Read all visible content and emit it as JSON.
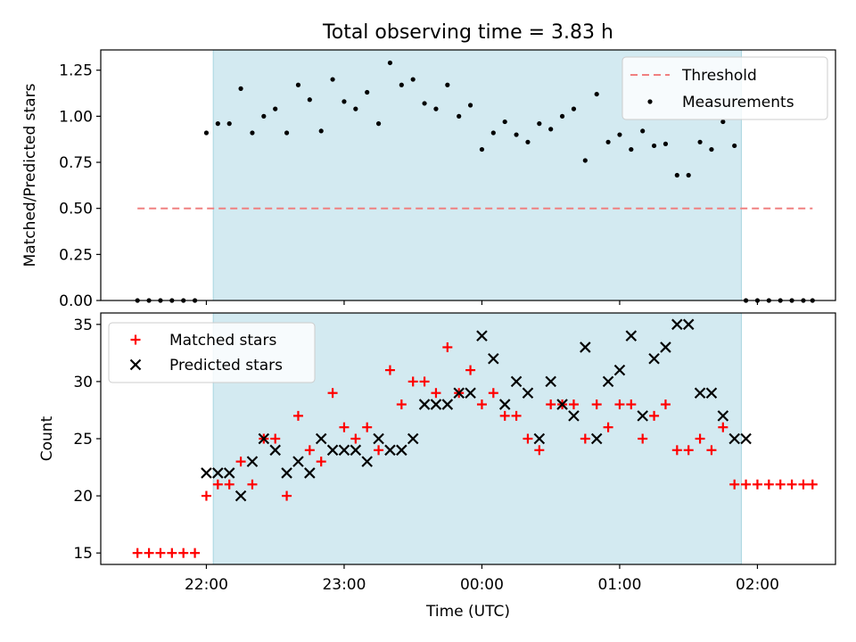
{
  "title": "Total observing time = 3.83 h",
  "xlabel": "Time (UTC)",
  "x_ticks": [
    "22:00",
    "23:00",
    "00:00",
    "01:00",
    "02:00"
  ],
  "colors": {
    "shade": "#d3eaf1",
    "threshold": "#f08080",
    "matched": "#ff0000",
    "predicted": "#000000"
  },
  "chart_data": [
    {
      "type": "scatter",
      "panel": "top",
      "ylabel": "Matched/Predicted stars",
      "ylim": [
        0,
        1.36
      ],
      "y_ticks": [
        "0.00",
        "0.25",
        "0.50",
        "0.75",
        "1.00",
        "1.25"
      ],
      "shaded_span": [
        "22:03",
        "01:53"
      ],
      "legend": [
        "Threshold",
        "Measurements"
      ],
      "legend_position": "top-right",
      "threshold": {
        "name": "Threshold",
        "value": 0.5,
        "x_range": [
          "21:30",
          "02:24"
        ]
      },
      "series": [
        {
          "name": "Measurements",
          "x": [
            "21:30",
            "21:35",
            "21:40",
            "21:45",
            "21:50",
            "21:55",
            "22:00",
            "22:05",
            "22:10",
            "22:15",
            "22:20",
            "22:25",
            "22:30",
            "22:35",
            "22:40",
            "22:45",
            "22:50",
            "22:55",
            "23:00",
            "23:05",
            "23:10",
            "23:15",
            "23:20",
            "23:25",
            "23:30",
            "23:35",
            "23:40",
            "23:45",
            "23:50",
            "23:55",
            "00:00",
            "00:05",
            "00:10",
            "00:15",
            "00:20",
            "00:25",
            "00:30",
            "00:35",
            "00:40",
            "00:45",
            "00:50",
            "00:55",
            "01:00",
            "01:05",
            "01:10",
            "01:15",
            "01:20",
            "01:25",
            "01:30",
            "01:35",
            "01:40",
            "01:45",
            "01:50",
            "01:55",
            "02:00",
            "02:05",
            "02:10",
            "02:15",
            "02:20",
            "02:24"
          ],
          "y": [
            0,
            0,
            0,
            0,
            0,
            0,
            0.91,
            0.96,
            0.96,
            1.15,
            0.91,
            1.0,
            1.04,
            0.91,
            1.17,
            1.09,
            0.92,
            1.2,
            1.08,
            1.04,
            1.13,
            0.96,
            1.29,
            1.17,
            1.2,
            1.07,
            1.04,
            1.17,
            1.0,
            1.06,
            0.82,
            0.91,
            0.97,
            0.9,
            0.86,
            0.96,
            0.93,
            1.0,
            1.04,
            0.76,
            1.12,
            0.86,
            0.9,
            0.82,
            0.92,
            0.84,
            0.85,
            0.68,
            0.68,
            0.86,
            0.82,
            0.97,
            0.84,
            0,
            0,
            0,
            0,
            0,
            0,
            0
          ]
        }
      ]
    },
    {
      "type": "scatter",
      "panel": "bottom",
      "ylabel": "Count",
      "ylim": [
        14,
        36
      ],
      "y_ticks": [
        "15",
        "20",
        "25",
        "30",
        "35"
      ],
      "shaded_span": [
        "22:03",
        "01:53"
      ],
      "legend": [
        "Matched stars",
        "Predicted stars"
      ],
      "legend_position": "top-left",
      "series": [
        {
          "name": "Matched stars",
          "marker": "plus",
          "x": [
            "21:30",
            "21:35",
            "21:40",
            "21:45",
            "21:50",
            "21:55",
            "22:00",
            "22:05",
            "22:10",
            "22:15",
            "22:20",
            "22:25",
            "22:30",
            "22:35",
            "22:40",
            "22:45",
            "22:50",
            "22:55",
            "23:00",
            "23:05",
            "23:10",
            "23:15",
            "23:20",
            "23:25",
            "23:30",
            "23:35",
            "23:40",
            "23:45",
            "23:50",
            "23:55",
            "00:00",
            "00:05",
            "00:10",
            "00:15",
            "00:20",
            "00:25",
            "00:30",
            "00:35",
            "00:40",
            "00:45",
            "00:50",
            "00:55",
            "01:00",
            "01:05",
            "01:10",
            "01:15",
            "01:20",
            "01:25",
            "01:30",
            "01:35",
            "01:40",
            "01:45",
            "01:50",
            "01:55",
            "02:00",
            "02:05",
            "02:10",
            "02:15",
            "02:20",
            "02:24"
          ],
          "y": [
            15,
            15,
            15,
            15,
            15,
            15,
            20,
            21,
            21,
            23,
            21,
            25,
            25,
            20,
            27,
            24,
            23,
            29,
            26,
            25,
            26,
            24,
            31,
            28,
            30,
            30,
            29,
            33,
            29,
            31,
            28,
            29,
            27,
            27,
            25,
            24,
            28,
            28,
            28,
            25,
            28,
            26,
            28,
            28,
            25,
            27,
            28,
            24,
            24,
            25,
            24,
            26,
            21,
            21,
            21,
            21,
            21,
            21,
            21,
            21
          ]
        },
        {
          "name": "Predicted stars",
          "marker": "x",
          "x": [
            "22:00",
            "22:05",
            "22:10",
            "22:15",
            "22:20",
            "22:25",
            "22:30",
            "22:35",
            "22:40",
            "22:45",
            "22:50",
            "22:55",
            "23:00",
            "23:05",
            "23:10",
            "23:15",
            "23:20",
            "23:25",
            "23:30",
            "23:35",
            "23:40",
            "23:45",
            "23:50",
            "23:55",
            "00:00",
            "00:05",
            "00:10",
            "00:15",
            "00:20",
            "00:25",
            "00:30",
            "00:35",
            "00:40",
            "00:45",
            "00:50",
            "00:55",
            "01:00",
            "01:05",
            "01:10",
            "01:15",
            "01:20",
            "01:25",
            "01:30",
            "01:35",
            "01:40",
            "01:45",
            "01:50",
            "01:55"
          ],
          "y": [
            22,
            22,
            22,
            20,
            23,
            25,
            24,
            22,
            23,
            22,
            25,
            24,
            24,
            24,
            23,
            25,
            24,
            24,
            25,
            28,
            28,
            28,
            29,
            29,
            34,
            32,
            28,
            30,
            29,
            25,
            30,
            28,
            27,
            33,
            25,
            30,
            31,
            34,
            27,
            32,
            33,
            35,
            35,
            29,
            29,
            27,
            25,
            25
          ]
        }
      ]
    }
  ]
}
